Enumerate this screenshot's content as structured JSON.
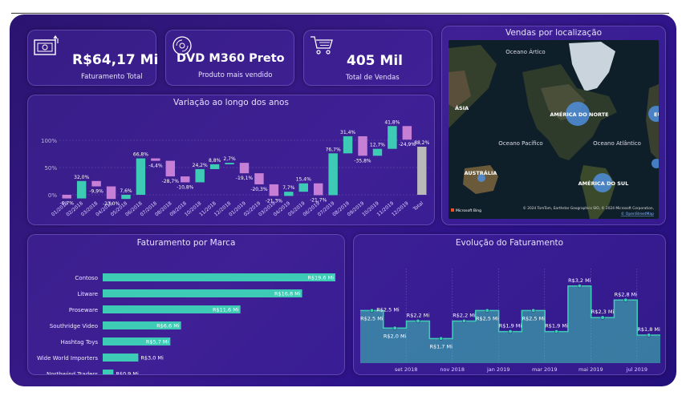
{
  "kpis": [
    {
      "value": "R$64,17 Mi",
      "label": "Faturamento Total",
      "icon": "money-icon"
    },
    {
      "value": "DVD M360 Preto",
      "label": "Produto mais vendido",
      "icon": "disc-icon"
    },
    {
      "value": "405 Mil",
      "label": "Total de Vendas",
      "icon": "cart-icon"
    }
  ],
  "map": {
    "title": "Vendas por localização",
    "labels": [
      "Oceano Ártico",
      "ÁSIA",
      "AMÉRICA DO NORTE",
      "Oceano Pacífico",
      "Oceano Atlântico",
      "AUSTRÁLIA",
      "AMÉRICA DO SUL",
      "EU"
    ],
    "attribution": "© 2024 TomTom, Earthstar Geographics SIO, © 2024 Microsoft Corporation,",
    "osm": "© OpenStreetMap",
    "brand": "Microsoft Bing"
  },
  "chart_data": [
    {
      "type": "waterfall",
      "title": "Variação ao longo dos anos",
      "y_ticks": [
        "100%",
        "50%",
        "0%"
      ],
      "ylim": [
        -0.4,
        1.0
      ],
      "categories": [
        "01/2018",
        "02/2018",
        "03/2018",
        "04/2018",
        "05/2018",
        "06/2018",
        "07/2018",
        "08/2018",
        "09/2018",
        "10/2018",
        "11/2018",
        "12/2018",
        "01/2019",
        "02/2019",
        "03/2019",
        "04/2019",
        "05/2019",
        "06/2019",
        "07/2019",
        "08/2019",
        "09/2019",
        "10/2019",
        "11/2019",
        "12/2019",
        "Total"
      ],
      "values": [
        -0.067,
        0.32,
        -0.099,
        -0.23,
        0.076,
        0.668,
        -0.044,
        -0.287,
        -0.108,
        0.242,
        0.088,
        0.027,
        -0.191,
        -0.203,
        -0.213,
        0.077,
        0.154,
        -0.217,
        0.767,
        0.314,
        -0.358,
        0.127,
        0.418,
        -0.249,
        0.882
      ],
      "data_labels": [
        "-6,7%",
        "32,0%",
        "-9,9%",
        "-23,0%",
        "7,6%",
        "66,8%",
        "-4,4%",
        "-28,7%",
        "-10,8%",
        "24,2%",
        "8,8%",
        "2,7%",
        "-19,1%",
        "-20,3%",
        "-21,3%",
        "7,7%",
        "15,4%",
        "-21,7%",
        "76,7%",
        "31,4%",
        "-35,8%",
        "12,7%",
        "41,8%",
        "-24,9%",
        "88,2%"
      ],
      "colors": {
        "increase": "#3ecbb5",
        "decrease": "#c77fd6",
        "total": "#b9b9b9"
      }
    },
    {
      "type": "bar",
      "orientation": "horizontal",
      "title": "Faturamento por Marca",
      "categories": [
        "Contoso",
        "Litware",
        "Proseware",
        "Southridge Video",
        "Hashtag Toys",
        "Wide World Importers",
        "Northwind Traders"
      ],
      "values": [
        19.6,
        16.8,
        11.6,
        6.6,
        5.7,
        3.0,
        0.9
      ],
      "data_labels": [
        "R$19,6 Mi",
        "R$16,8 Mi",
        "R$11,6 Mi",
        "R$6,6 Mi",
        "R$5,7 Mi",
        "R$3,0 Mi",
        "R$0,9 Mi"
      ],
      "color": "#3ecbb5"
    },
    {
      "type": "area",
      "step": true,
      "title": "Evolução do Faturamento",
      "x_ticks": [
        "set 2018",
        "nov 2018",
        "jan 2019",
        "mar 2019",
        "mai 2019",
        "jul 2019"
      ],
      "values": [
        2.5,
        2.0,
        2.2,
        1.7,
        2.2,
        2.5,
        1.9,
        2.5,
        1.9,
        3.2,
        2.3,
        2.8,
        1.8
      ],
      "data_labels": [
        "R$2,5 Mi",
        "R$2,0 Mi",
        "R$2,2 Mi",
        "R$1,7 Mi",
        "R$2,2 Mi",
        "R$2,5 Mi",
        "R$1,9 Mi",
        "R$2,5 Mi",
        "R$1,9 Mi",
        "R$3,2 Mi",
        "R$2,3 Mi",
        "R$2,8 Mi",
        "R$1,8 Mi"
      ],
      "extra_label": "R$2,5 Mi",
      "ylim": [
        1.0,
        3.4
      ],
      "color": "#3ecbb5"
    }
  ]
}
